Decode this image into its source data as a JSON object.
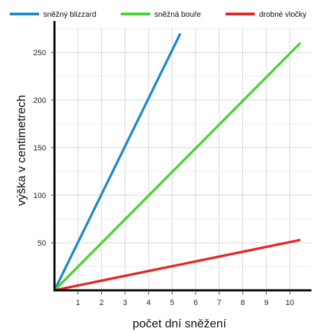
{
  "chart_data": {
    "type": "line",
    "title": "",
    "xlabel": "počet dní sněžení",
    "ylabel": "výška v centimetrech",
    "xlim": [
      0,
      10.5
    ],
    "ylim": [
      0,
      280
    ],
    "x_ticks": [
      "1",
      "2",
      "3",
      "4",
      "5",
      "6",
      "7",
      "8",
      "9",
      "10"
    ],
    "y_ticks": [
      "50",
      "100",
      "150",
      "200",
      "250"
    ],
    "grid": true,
    "legend_position": "top",
    "series": [
      {
        "name": "sněžný blizzard",
        "color": "#1f8ac8",
        "x": [
          0,
          5.35
        ],
        "y": [
          0,
          270
        ]
      },
      {
        "name": "sněžná bouře",
        "color": "#43d62b",
        "x": [
          0,
          10.45
        ],
        "y": [
          0,
          260
        ]
      },
      {
        "name": "drobné vločky",
        "color": "#e32727",
        "x": [
          0,
          10.45
        ],
        "y": [
          0,
          53
        ]
      }
    ]
  }
}
